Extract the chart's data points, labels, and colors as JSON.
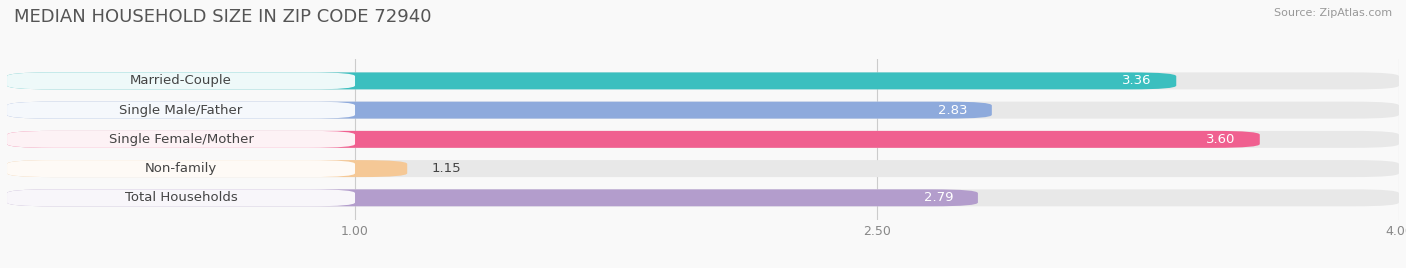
{
  "title": "MEDIAN HOUSEHOLD SIZE IN ZIP CODE 72940",
  "source": "Source: ZipAtlas.com",
  "categories": [
    "Married-Couple",
    "Single Male/Father",
    "Single Female/Mother",
    "Non-family",
    "Total Households"
  ],
  "values": [
    3.36,
    2.83,
    3.6,
    1.15,
    2.79
  ],
  "bar_colors": [
    "#3bbfbf",
    "#8eaadc",
    "#f06090",
    "#f5c896",
    "#b39dcc"
  ],
  "track_color": "#e8e8e8",
  "xlim_data": [
    0.0,
    4.0
  ],
  "xticks": [
    1.0,
    2.5,
    4.0
  ],
  "xmin": 0.0,
  "xmax": 4.0,
  "label_fontsize": 9.5,
  "value_fontsize": 9.5,
  "title_fontsize": 13,
  "bar_height": 0.58,
  "background_color": "#f9f9f9",
  "label_pill_color": "#ffffff",
  "text_color_dark": "#444444",
  "text_color_white": "#ffffff",
  "source_color": "#999999",
  "grid_color": "#cccccc"
}
